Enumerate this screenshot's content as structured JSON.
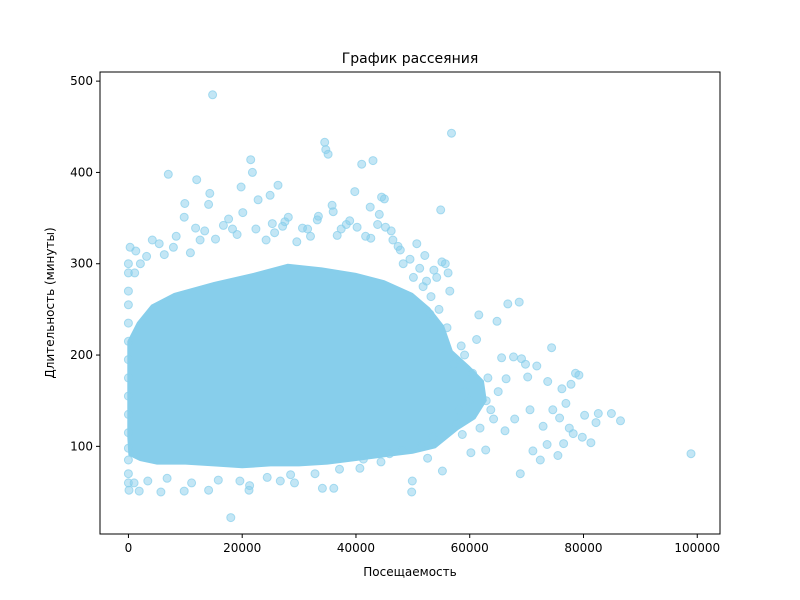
{
  "chart_data": {
    "type": "scatter",
    "title": "График рассеяния",
    "xlabel": "Посещаемость",
    "ylabel": "Длительность (минуты)",
    "xlim": [
      -5000,
      104000
    ],
    "ylim": [
      4,
      510
    ],
    "xticks": [
      0,
      20000,
      40000,
      60000,
      80000,
      100000
    ],
    "yticks": [
      100,
      200,
      300,
      400,
      500
    ],
    "marker_color": "#87ceeb",
    "marker_alpha": 0.5,
    "grid": false,
    "legend": "none",
    "points": [
      [
        14800,
        485
      ],
      [
        56800,
        443
      ],
      [
        34500,
        433
      ],
      [
        34700,
        425
      ],
      [
        35100,
        420
      ],
      [
        21500,
        414
      ],
      [
        43000,
        413
      ],
      [
        41000,
        409
      ],
      [
        7000,
        398
      ],
      [
        12000,
        392
      ],
      [
        21800,
        400
      ],
      [
        26300,
        386
      ],
      [
        14300,
        377
      ],
      [
        19800,
        384
      ],
      [
        39800,
        379
      ],
      [
        44500,
        373
      ],
      [
        45000,
        371
      ],
      [
        9900,
        366
      ],
      [
        14100,
        365
      ],
      [
        22800,
        370
      ],
      [
        24900,
        375
      ],
      [
        35800,
        364
      ],
      [
        42500,
        362
      ],
      [
        54900,
        359
      ],
      [
        9800,
        351
      ],
      [
        17600,
        349
      ],
      [
        27500,
        346
      ],
      [
        33400,
        352
      ],
      [
        38900,
        347
      ],
      [
        43800,
        343
      ],
      [
        11800,
        339
      ],
      [
        18300,
        338
      ],
      [
        25700,
        334
      ],
      [
        31500,
        338
      ],
      [
        36700,
        331
      ],
      [
        46200,
        336
      ],
      [
        50700,
        322
      ],
      [
        4200,
        326
      ],
      [
        8400,
        330
      ],
      [
        15300,
        327
      ],
      [
        29600,
        324
      ],
      [
        47400,
        319
      ],
      [
        300,
        318
      ],
      [
        1300,
        314
      ],
      [
        52100,
        309
      ],
      [
        55100,
        302
      ],
      [
        55700,
        300
      ],
      [
        53700,
        293
      ],
      [
        56200,
        290
      ],
      [
        54200,
        285
      ],
      [
        56500,
        270
      ],
      [
        66700,
        256
      ],
      [
        68700,
        258
      ],
      [
        61600,
        244
      ],
      [
        64800,
        237
      ],
      [
        61200,
        217
      ],
      [
        59100,
        200
      ],
      [
        65600,
        197
      ],
      [
        67700,
        198
      ],
      [
        69100,
        196
      ],
      [
        69800,
        190
      ],
      [
        71800,
        188
      ],
      [
        74400,
        208
      ],
      [
        63200,
        175
      ],
      [
        66400,
        174
      ],
      [
        70200,
        176
      ],
      [
        73700,
        171
      ],
      [
        76200,
        163
      ],
      [
        77800,
        168
      ],
      [
        78600,
        180
      ],
      [
        79200,
        178
      ],
      [
        76900,
        147
      ],
      [
        74600,
        140
      ],
      [
        75800,
        131
      ],
      [
        77500,
        120
      ],
      [
        78200,
        114
      ],
      [
        76500,
        103
      ],
      [
        79800,
        110
      ],
      [
        80200,
        134
      ],
      [
        82200,
        126
      ],
      [
        82600,
        136
      ],
      [
        84900,
        136
      ],
      [
        86500,
        128
      ],
      [
        81300,
        104
      ],
      [
        72400,
        85
      ],
      [
        68900,
        70
      ],
      [
        71100,
        95
      ],
      [
        73600,
        102
      ],
      [
        75500,
        90
      ],
      [
        98900,
        92
      ],
      [
        60200,
        93
      ],
      [
        62800,
        96
      ],
      [
        66200,
        117
      ],
      [
        67900,
        130
      ],
      [
        70600,
        140
      ],
      [
        72900,
        122
      ],
      [
        63700,
        140
      ],
      [
        65000,
        160
      ],
      [
        61800,
        120
      ],
      [
        58700,
        113
      ],
      [
        57600,
        125
      ],
      [
        59900,
        150
      ],
      [
        55200,
        73
      ],
      [
        49900,
        62
      ],
      [
        49800,
        50
      ],
      [
        52600,
        87
      ],
      [
        18000,
        22
      ],
      [
        21200,
        52
      ],
      [
        21300,
        57
      ],
      [
        14100,
        52
      ],
      [
        9800,
        51
      ],
      [
        1900,
        51
      ],
      [
        100,
        52
      ],
      [
        5700,
        50
      ],
      [
        34100,
        54
      ],
      [
        36100,
        54
      ],
      [
        26700,
        62
      ],
      [
        29200,
        60
      ],
      [
        40700,
        76
      ],
      [
        44400,
        83
      ],
      [
        0,
        98
      ],
      [
        0,
        115
      ],
      [
        0,
        135
      ],
      [
        0,
        155
      ],
      [
        0,
        175
      ],
      [
        0,
        195
      ],
      [
        0,
        215
      ],
      [
        0,
        235
      ],
      [
        0,
        255
      ],
      [
        0,
        270
      ],
      [
        0,
        290
      ],
      [
        0,
        300
      ],
      [
        0,
        85
      ],
      [
        0,
        70
      ],
      [
        0,
        60
      ],
      [
        59200,
        160
      ],
      [
        60500,
        180
      ],
      [
        62900,
        150
      ],
      [
        64200,
        130
      ],
      [
        58100,
        140
      ],
      [
        57200,
        190
      ],
      [
        58500,
        210
      ],
      [
        56000,
        230
      ],
      [
        54600,
        250
      ],
      [
        53200,
        264
      ],
      [
        52400,
        281
      ],
      [
        51200,
        295
      ],
      [
        49500,
        305
      ],
      [
        47800,
        315
      ],
      [
        46500,
        326
      ],
      [
        45200,
        340
      ],
      [
        44100,
        354
      ],
      [
        41700,
        330
      ],
      [
        38300,
        343
      ],
      [
        36000,
        357
      ],
      [
        33200,
        348
      ],
      [
        30600,
        339
      ],
      [
        28100,
        351
      ],
      [
        25300,
        344
      ],
      [
        22400,
        338
      ],
      [
        20100,
        356
      ],
      [
        16700,
        342
      ],
      [
        13400,
        336
      ],
      [
        10900,
        312
      ],
      [
        7900,
        318
      ],
      [
        5400,
        322
      ],
      [
        3200,
        308
      ],
      [
        2100,
        300
      ],
      [
        1100,
        290
      ],
      [
        6300,
        310
      ],
      [
        12600,
        326
      ],
      [
        19100,
        332
      ],
      [
        24200,
        326
      ],
      [
        27100,
        341
      ],
      [
        32000,
        330
      ],
      [
        37400,
        338
      ],
      [
        40200,
        340
      ],
      [
        42600,
        328
      ],
      [
        48300,
        300
      ],
      [
        50100,
        285
      ],
      [
        51800,
        275
      ],
      [
        53000,
        245
      ],
      [
        1000,
        60
      ],
      [
        3400,
        62
      ],
      [
        6800,
        65
      ],
      [
        11100,
        60
      ],
      [
        15800,
        63
      ],
      [
        19600,
        62
      ],
      [
        24400,
        66
      ],
      [
        28500,
        69
      ],
      [
        32800,
        70
      ],
      [
        37100,
        75
      ],
      [
        41300,
        86
      ],
      [
        45900,
        92
      ],
      [
        48200,
        96
      ],
      [
        51500,
        100
      ],
      [
        53500,
        110
      ]
    ]
  }
}
